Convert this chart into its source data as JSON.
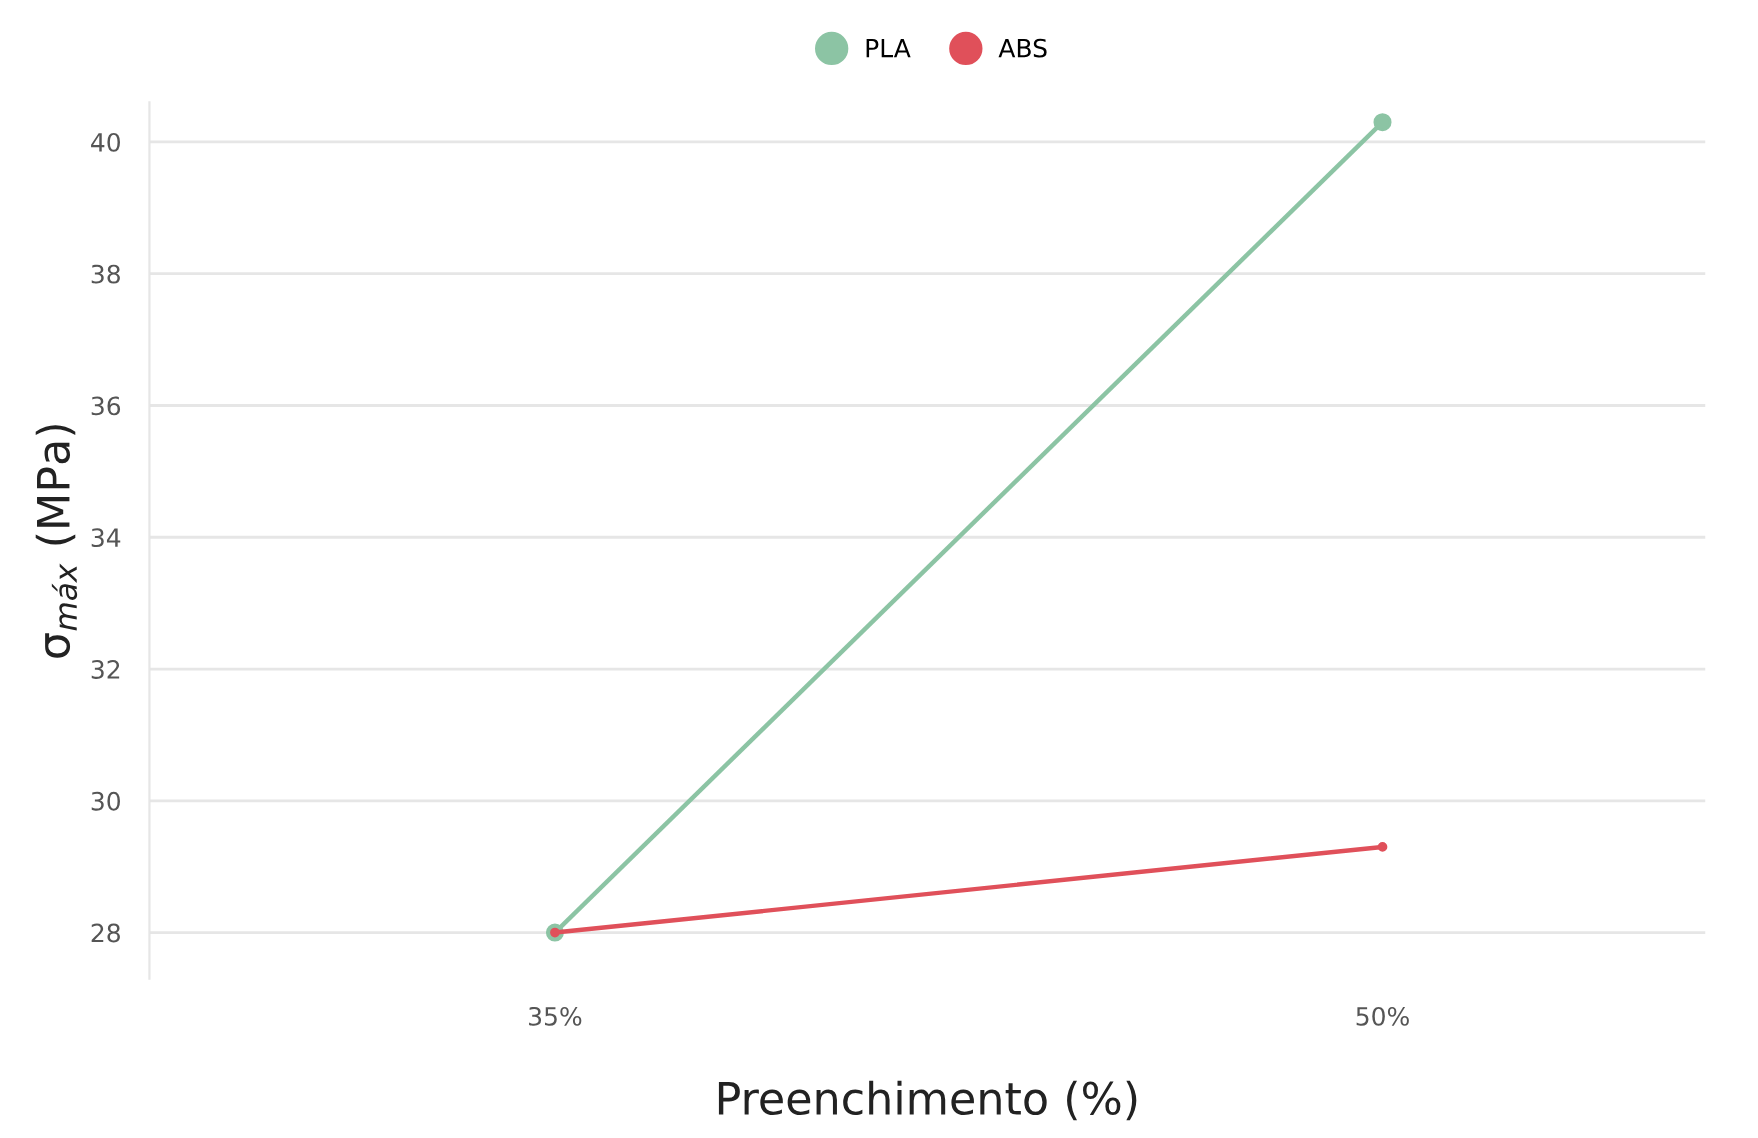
{
  "chart_data": {
    "type": "line",
    "xlabel": "Preenchimento (%)",
    "ylabel": "σ$_{máx}$ (MPa)",
    "categories": [
      "35%",
      "50%"
    ],
    "series": [
      {
        "name": "PLA",
        "color": "#8cc4a4",
        "values": [
          28.0,
          40.3
        ]
      },
      {
        "name": "ABS",
        "color": "#e0505a",
        "values": [
          28.0,
          29.3
        ]
      }
    ],
    "ylim": [
      27.3,
      40.6
    ],
    "yticks": [
      28,
      30,
      32,
      34,
      36,
      38,
      40
    ],
    "grid": "y",
    "legend": "top",
    "marker": "circle",
    "line_style": "solid"
  }
}
